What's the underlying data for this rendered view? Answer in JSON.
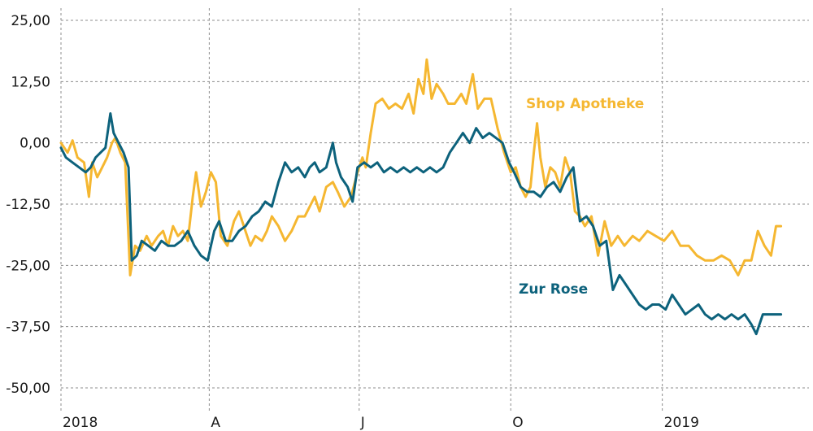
{
  "chart_data": {
    "type": "line",
    "title": "",
    "xlabel": "",
    "ylabel": "",
    "ylim": [
      -50,
      25
    ],
    "yticks": [
      25,
      12.5,
      0,
      -12.5,
      -25,
      -37.5,
      -50
    ],
    "ytick_labels": [
      "25,00",
      "12,50",
      "0,00",
      "-12,50",
      "-25,00",
      "-37,50",
      "-50,00"
    ],
    "xlim": [
      "2018-01-01",
      "2019-03-31"
    ],
    "xticks": [
      "2018-01-01",
      "2018-04-01",
      "2018-07-01",
      "2018-10-01",
      "2019-01-01"
    ],
    "xtick_labels": [
      "2018",
      "A",
      "J",
      "O",
      "2019"
    ],
    "grid": true,
    "legend": "inline labels",
    "series": [
      {
        "name": "Shop Apotheke",
        "color": "#f5b731",
        "label_position": "right of peak, near 7",
        "points": [
          [
            "2018-01-01",
            0
          ],
          [
            "2018-01-05",
            -2
          ],
          [
            "2018-01-08",
            0.5
          ],
          [
            "2018-01-11",
            -3
          ],
          [
            "2018-01-15",
            -4
          ],
          [
            "2018-01-18",
            -11
          ],
          [
            "2018-01-20",
            -4
          ],
          [
            "2018-01-23",
            -7
          ],
          [
            "2018-01-26",
            -5
          ],
          [
            "2018-01-29",
            -3
          ],
          [
            "2018-02-01",
            0
          ],
          [
            "2018-02-03",
            1
          ],
          [
            "2018-02-06",
            -2
          ],
          [
            "2018-02-09",
            -4
          ],
          [
            "2018-02-12",
            -27
          ],
          [
            "2018-02-15",
            -21
          ],
          [
            "2018-02-18",
            -22
          ],
          [
            "2018-02-22",
            -19
          ],
          [
            "2018-02-25",
            -21
          ],
          [
            "2018-03-01",
            -19
          ],
          [
            "2018-03-04",
            -18
          ],
          [
            "2018-03-07",
            -21
          ],
          [
            "2018-03-10",
            -17
          ],
          [
            "2018-03-13",
            -19
          ],
          [
            "2018-03-16",
            -18
          ],
          [
            "2018-03-19",
            -20
          ],
          [
            "2018-03-22",
            -11
          ],
          [
            "2018-03-24",
            -6
          ],
          [
            "2018-03-27",
            -13
          ],
          [
            "2018-03-30",
            -10
          ],
          [
            "2018-04-02",
            -6
          ],
          [
            "2018-04-05",
            -8
          ],
          [
            "2018-04-08",
            -19
          ],
          [
            "2018-04-12",
            -21
          ],
          [
            "2018-04-16",
            -16
          ],
          [
            "2018-04-19",
            -14
          ],
          [
            "2018-04-22",
            -17
          ],
          [
            "2018-04-26",
            -21
          ],
          [
            "2018-04-29",
            -19
          ],
          [
            "2018-05-03",
            -20
          ],
          [
            "2018-05-06",
            -18
          ],
          [
            "2018-05-09",
            -15
          ],
          [
            "2018-05-13",
            -17
          ],
          [
            "2018-05-17",
            -20
          ],
          [
            "2018-05-21",
            -18
          ],
          [
            "2018-05-25",
            -15
          ],
          [
            "2018-05-29",
            -15
          ],
          [
            "2018-06-01",
            -13
          ],
          [
            "2018-06-04",
            -11
          ],
          [
            "2018-06-07",
            -14
          ],
          [
            "2018-06-11",
            -9
          ],
          [
            "2018-06-15",
            -8
          ],
          [
            "2018-06-18",
            -10
          ],
          [
            "2018-06-22",
            -13
          ],
          [
            "2018-06-26",
            -11
          ],
          [
            "2018-06-30",
            -6
          ],
          [
            "2018-07-03",
            -3
          ],
          [
            "2018-07-05",
            -5
          ],
          [
            "2018-07-08",
            2
          ],
          [
            "2018-07-11",
            8
          ],
          [
            "2018-07-15",
            9
          ],
          [
            "2018-07-19",
            7
          ],
          [
            "2018-07-23",
            8
          ],
          [
            "2018-07-27",
            7
          ],
          [
            "2018-07-31",
            10
          ],
          [
            "2018-08-03",
            6
          ],
          [
            "2018-08-06",
            13
          ],
          [
            "2018-08-09",
            10
          ],
          [
            "2018-08-11",
            17
          ],
          [
            "2018-08-14",
            9
          ],
          [
            "2018-08-17",
            12
          ],
          [
            "2018-08-21",
            10
          ],
          [
            "2018-08-24",
            8
          ],
          [
            "2018-08-28",
            8
          ],
          [
            "2018-09-01",
            10
          ],
          [
            "2018-09-04",
            8
          ],
          [
            "2018-09-08",
            14
          ],
          [
            "2018-09-11",
            7
          ],
          [
            "2018-09-15",
            9
          ],
          [
            "2018-09-19",
            9
          ],
          [
            "2018-09-23",
            3
          ],
          [
            "2018-09-27",
            -2
          ],
          [
            "2018-10-01",
            -6
          ],
          [
            "2018-10-04",
            -5
          ],
          [
            "2018-10-07",
            -9
          ],
          [
            "2018-10-10",
            -11
          ],
          [
            "2018-10-13",
            -9
          ],
          [
            "2018-10-15",
            -2
          ],
          [
            "2018-10-17",
            4
          ],
          [
            "2018-10-19",
            -3
          ],
          [
            "2018-10-22",
            -9
          ],
          [
            "2018-10-25",
            -5
          ],
          [
            "2018-10-28",
            -6
          ],
          [
            "2018-10-31",
            -9
          ],
          [
            "2018-11-03",
            -3
          ],
          [
            "2018-11-06",
            -6
          ],
          [
            "2018-11-09",
            -14
          ],
          [
            "2018-11-12",
            -15
          ],
          [
            "2018-11-15",
            -17
          ],
          [
            "2018-11-19",
            -15
          ],
          [
            "2018-11-23",
            -23
          ],
          [
            "2018-11-27",
            -16
          ],
          [
            "2018-12-01",
            -21
          ],
          [
            "2018-12-05",
            -19
          ],
          [
            "2018-12-09",
            -21
          ],
          [
            "2018-12-14",
            -19
          ],
          [
            "2018-12-18",
            -20
          ],
          [
            "2018-12-23",
            -18
          ],
          [
            "2018-12-28",
            -19
          ],
          [
            "2019-01-02",
            -20
          ],
          [
            "2019-01-07",
            -18
          ],
          [
            "2019-01-12",
            -21
          ],
          [
            "2019-01-17",
            -21
          ],
          [
            "2019-01-22",
            -23
          ],
          [
            "2019-01-27",
            -24
          ],
          [
            "2019-02-01",
            -24
          ],
          [
            "2019-02-06",
            -23
          ],
          [
            "2019-02-11",
            -24
          ],
          [
            "2019-02-16",
            -27
          ],
          [
            "2019-02-20",
            -24
          ],
          [
            "2019-02-24",
            -24
          ],
          [
            "2019-02-28",
            -18
          ],
          [
            "2019-03-04",
            -21
          ],
          [
            "2019-03-08",
            -23
          ],
          [
            "2019-03-11",
            -17
          ],
          [
            "2019-03-14",
            -17
          ]
        ]
      },
      {
        "name": "Zur Rose",
        "color": "#0d627c",
        "label_position": "right, near -30",
        "points": [
          [
            "2018-01-01",
            -1
          ],
          [
            "2018-01-04",
            -3
          ],
          [
            "2018-01-08",
            -4
          ],
          [
            "2018-01-12",
            -5
          ],
          [
            "2018-01-16",
            -6
          ],
          [
            "2018-01-19",
            -5
          ],
          [
            "2018-01-22",
            -3
          ],
          [
            "2018-01-25",
            -2
          ],
          [
            "2018-01-28",
            -1
          ],
          [
            "2018-01-31",
            6
          ],
          [
            "2018-02-02",
            2
          ],
          [
            "2018-02-05",
            0
          ],
          [
            "2018-02-08",
            -2
          ],
          [
            "2018-02-11",
            -5
          ],
          [
            "2018-02-13",
            -24
          ],
          [
            "2018-02-16",
            -23
          ],
          [
            "2018-02-19",
            -20
          ],
          [
            "2018-02-23",
            -21
          ],
          [
            "2018-02-27",
            -22
          ],
          [
            "2018-03-03",
            -20
          ],
          [
            "2018-03-07",
            -21
          ],
          [
            "2018-03-11",
            -21
          ],
          [
            "2018-03-15",
            -20
          ],
          [
            "2018-03-19",
            -18
          ],
          [
            "2018-03-23",
            -21
          ],
          [
            "2018-03-27",
            -23
          ],
          [
            "2018-03-31",
            -24
          ],
          [
            "2018-04-04",
            -18
          ],
          [
            "2018-04-07",
            -16
          ],
          [
            "2018-04-11",
            -20
          ],
          [
            "2018-04-15",
            -20
          ],
          [
            "2018-04-19",
            -18
          ],
          [
            "2018-04-23",
            -17
          ],
          [
            "2018-04-27",
            -15
          ],
          [
            "2018-05-01",
            -14
          ],
          [
            "2018-05-05",
            -12
          ],
          [
            "2018-05-09",
            -13
          ],
          [
            "2018-05-13",
            -8
          ],
          [
            "2018-05-17",
            -4
          ],
          [
            "2018-05-21",
            -6
          ],
          [
            "2018-05-25",
            -5
          ],
          [
            "2018-05-29",
            -7
          ],
          [
            "2018-06-01",
            -5
          ],
          [
            "2018-06-04",
            -4
          ],
          [
            "2018-06-07",
            -6
          ],
          [
            "2018-06-11",
            -5
          ],
          [
            "2018-06-15",
            0
          ],
          [
            "2018-06-17",
            -4
          ],
          [
            "2018-06-20",
            -7
          ],
          [
            "2018-06-24",
            -9
          ],
          [
            "2018-06-27",
            -12
          ],
          [
            "2018-06-30",
            -5
          ],
          [
            "2018-07-04",
            -4
          ],
          [
            "2018-07-08",
            -5
          ],
          [
            "2018-07-12",
            -4
          ],
          [
            "2018-07-16",
            -6
          ],
          [
            "2018-07-20",
            -5
          ],
          [
            "2018-07-24",
            -6
          ],
          [
            "2018-07-28",
            -5
          ],
          [
            "2018-08-01",
            -6
          ],
          [
            "2018-08-05",
            -5
          ],
          [
            "2018-08-09",
            -6
          ],
          [
            "2018-08-13",
            -5
          ],
          [
            "2018-08-17",
            -6
          ],
          [
            "2018-08-21",
            -5
          ],
          [
            "2018-08-25",
            -2
          ],
          [
            "2018-08-29",
            0
          ],
          [
            "2018-09-02",
            2
          ],
          [
            "2018-09-06",
            0
          ],
          [
            "2018-09-10",
            3
          ],
          [
            "2018-09-14",
            1
          ],
          [
            "2018-09-18",
            2
          ],
          [
            "2018-09-22",
            1
          ],
          [
            "2018-09-26",
            0
          ],
          [
            "2018-09-30",
            -4
          ],
          [
            "2018-10-03",
            -6
          ],
          [
            "2018-10-07",
            -9
          ],
          [
            "2018-10-11",
            -10
          ],
          [
            "2018-10-15",
            -10
          ],
          [
            "2018-10-19",
            -11
          ],
          [
            "2018-10-23",
            -9
          ],
          [
            "2018-10-27",
            -8
          ],
          [
            "2018-10-31",
            -10
          ],
          [
            "2018-11-04",
            -7
          ],
          [
            "2018-11-08",
            -5
          ],
          [
            "2018-11-12",
            -16
          ],
          [
            "2018-11-16",
            -15
          ],
          [
            "2018-11-20",
            -17
          ],
          [
            "2018-11-24",
            -21
          ],
          [
            "2018-11-28",
            -20
          ],
          [
            "2018-12-02",
            -30
          ],
          [
            "2018-12-06",
            -27
          ],
          [
            "2018-12-10",
            -29
          ],
          [
            "2018-12-14",
            -31
          ],
          [
            "2018-12-18",
            -33
          ],
          [
            "2018-12-22",
            -34
          ],
          [
            "2018-12-26",
            -33
          ],
          [
            "2018-12-30",
            -33
          ],
          [
            "2019-01-03",
            -34
          ],
          [
            "2019-01-07",
            -31
          ],
          [
            "2019-01-11",
            -33
          ],
          [
            "2019-01-15",
            -35
          ],
          [
            "2019-01-19",
            -34
          ],
          [
            "2019-01-23",
            -33
          ],
          [
            "2019-01-27",
            -35
          ],
          [
            "2019-01-31",
            -36
          ],
          [
            "2019-02-04",
            -35
          ],
          [
            "2019-02-08",
            -36
          ],
          [
            "2019-02-12",
            -35
          ],
          [
            "2019-02-16",
            -36
          ],
          [
            "2019-02-20",
            -35
          ],
          [
            "2019-02-24",
            -37
          ],
          [
            "2019-02-27",
            -39
          ],
          [
            "2019-03-03",
            -35
          ],
          [
            "2019-03-07",
            -35
          ],
          [
            "2019-03-14",
            -35
          ]
        ]
      }
    ]
  }
}
